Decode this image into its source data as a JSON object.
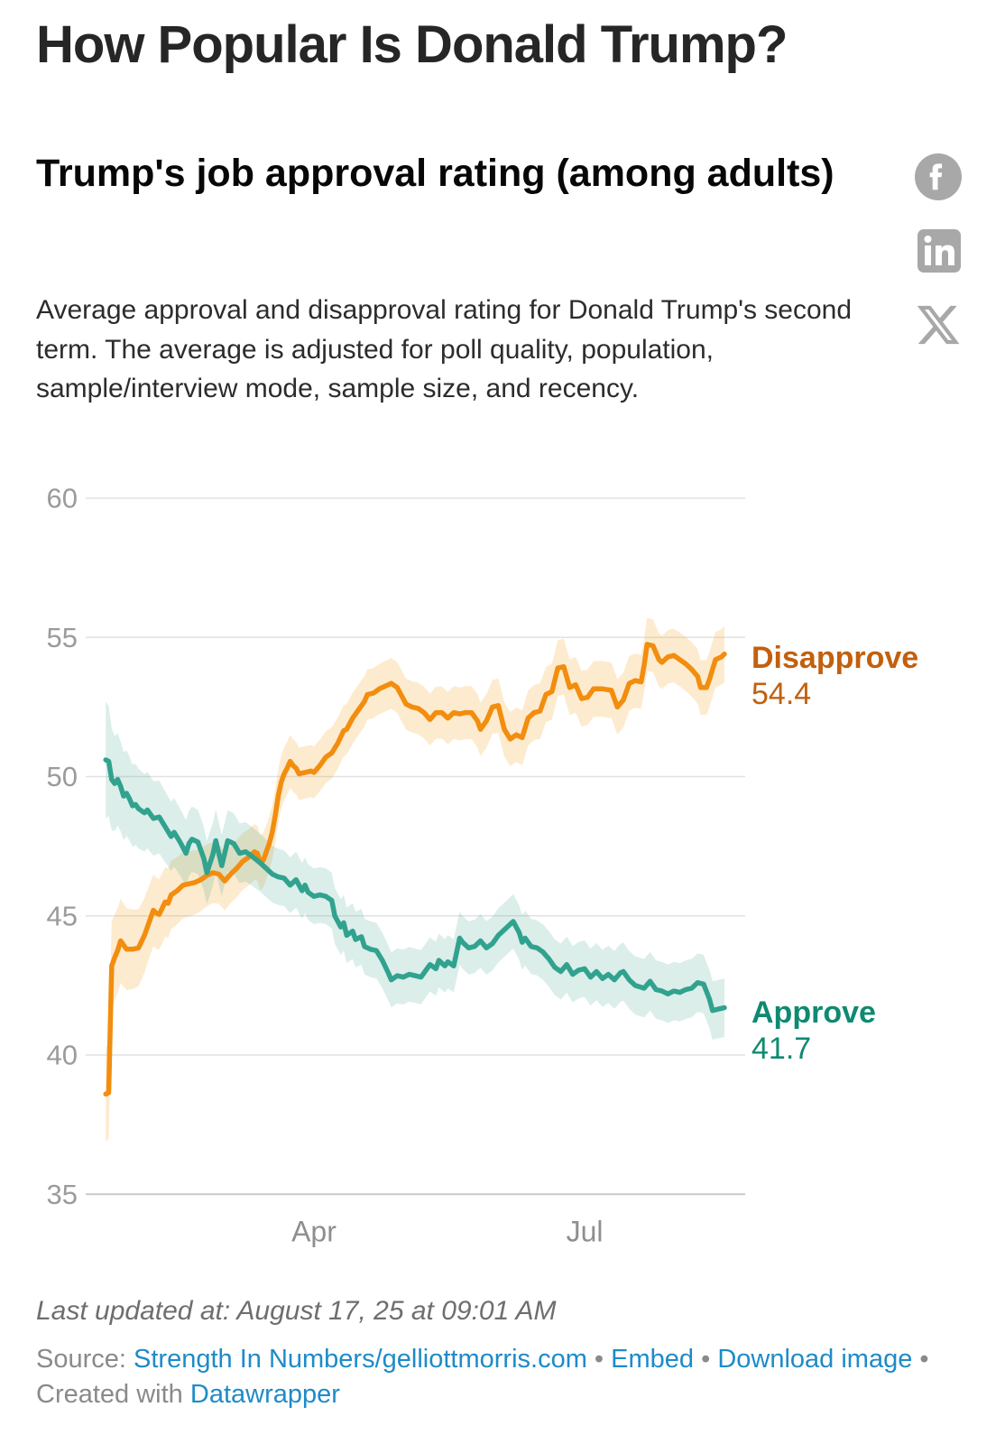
{
  "page": {
    "title": "How Popular Is Donald Trump?"
  },
  "header": {
    "headline": "Trump's job approval rating (among adults)",
    "description": "Average approval and disapproval rating for Donald Trump's second term. The average is adjusted for poll quality, population, sample/interview mode, sample size, and recency.",
    "share_icons": [
      "facebook",
      "linkedin",
      "x"
    ],
    "icon_color": "#a8a8a8"
  },
  "chart_data": {
    "type": "line",
    "title": "Trump's job approval rating (among adults)",
    "x_domain": [
      "2025-01-21",
      "2025-08-17"
    ],
    "x_unit": "days since 2025-01-21",
    "x_ticks": [
      {
        "day": 70,
        "label": "Apr"
      },
      {
        "day": 161,
        "label": "Jul"
      }
    ],
    "y_ticks": [
      60,
      55,
      50,
      45,
      40,
      35
    ],
    "ylim": [
      35,
      60
    ],
    "grid": "horizontal-only",
    "legend_position": "right-end-labels",
    "axis_label_color": "#9b9b9b",
    "grid_color": "#e2e2e2",
    "baseline_color": "#c9c9c9",
    "series": [
      {
        "name": "Disapprove",
        "end_value": 54.4,
        "end_value_label": "54.4",
        "color": "#f28d0e",
        "label_color": "#c2600e",
        "band_color": "#f5a623",
        "band_opacity": 0.22,
        "band_margin": [
          [
            0,
            1.7
          ],
          [
            3,
            1.55
          ],
          [
            8,
            1.45
          ],
          [
            15,
            1.3
          ],
          [
            25,
            1.2
          ],
          [
            40,
            1.05
          ],
          [
            60,
            0.95
          ],
          [
            90,
            0.9
          ],
          [
            120,
            0.95
          ],
          [
            150,
            1.0
          ],
          [
            170,
            1.0
          ],
          [
            185,
            0.95
          ],
          [
            208,
            1.0
          ]
        ],
        "points": [
          [
            0,
            38.6
          ],
          [
            1,
            38.65
          ],
          [
            2,
            43.2
          ],
          [
            3,
            43.5
          ],
          [
            4,
            43.75
          ],
          [
            5,
            44.1
          ],
          [
            6,
            43.95
          ],
          [
            7,
            43.8
          ],
          [
            9,
            43.8
          ],
          [
            11,
            43.85
          ],
          [
            13,
            44.3
          ],
          [
            15,
            44.9
          ],
          [
            16,
            45.2
          ],
          [
            17,
            45.1
          ],
          [
            18,
            45.05
          ],
          [
            20,
            45.5
          ],
          [
            21,
            45.45
          ],
          [
            22,
            45.75
          ],
          [
            24,
            45.9
          ],
          [
            26,
            46.1
          ],
          [
            28,
            46.15
          ],
          [
            30,
            46.2
          ],
          [
            32,
            46.3
          ],
          [
            34,
            46.45
          ],
          [
            36,
            46.55
          ],
          [
            38,
            46.5
          ],
          [
            40,
            46.25
          ],
          [
            42,
            46.5
          ],
          [
            44,
            46.7
          ],
          [
            46,
            46.95
          ],
          [
            48,
            47.1
          ],
          [
            50,
            47.3
          ],
          [
            51,
            47.25
          ],
          [
            52,
            46.9
          ],
          [
            53,
            47.0
          ],
          [
            54,
            47.3
          ],
          [
            55,
            47.6
          ],
          [
            56,
            48.0
          ],
          [
            57,
            48.6
          ],
          [
            58,
            49.3
          ],
          [
            59,
            49.8
          ],
          [
            60,
            50.1
          ],
          [
            61,
            50.3
          ],
          [
            62,
            50.55
          ],
          [
            63,
            50.4
          ],
          [
            64,
            50.3
          ],
          [
            65,
            50.1
          ],
          [
            67,
            50.15
          ],
          [
            69,
            50.2
          ],
          [
            70,
            50.15
          ],
          [
            72,
            50.4
          ],
          [
            74,
            50.7
          ],
          [
            76,
            50.85
          ],
          [
            78,
            51.2
          ],
          [
            80,
            51.65
          ],
          [
            81,
            51.7
          ],
          [
            83,
            52.1
          ],
          [
            85,
            52.4
          ],
          [
            87,
            52.7
          ],
          [
            88,
            52.95
          ],
          [
            90,
            53.0
          ],
          [
            92,
            53.15
          ],
          [
            94,
            53.25
          ],
          [
            96,
            53.35
          ],
          [
            98,
            53.2
          ],
          [
            99,
            53.0
          ],
          [
            101,
            52.6
          ],
          [
            103,
            52.5
          ],
          [
            105,
            52.45
          ],
          [
            107,
            52.3
          ],
          [
            109,
            52.05
          ],
          [
            111,
            52.3
          ],
          [
            113,
            52.3
          ],
          [
            115,
            52.1
          ],
          [
            117,
            52.3
          ],
          [
            119,
            52.25
          ],
          [
            121,
            52.3
          ],
          [
            123,
            52.3
          ],
          [
            125,
            52.0
          ],
          [
            126,
            51.7
          ],
          [
            128,
            52.0
          ],
          [
            130,
            52.5
          ],
          [
            132,
            52.55
          ],
          [
            134,
            51.7
          ],
          [
            136,
            51.35
          ],
          [
            138,
            51.5
          ],
          [
            140,
            51.4
          ],
          [
            142,
            52.1
          ],
          [
            144,
            52.3
          ],
          [
            146,
            52.35
          ],
          [
            148,
            52.95
          ],
          [
            150,
            53.05
          ],
          [
            152,
            53.9
          ],
          [
            154,
            53.95
          ],
          [
            156,
            53.2
          ],
          [
            158,
            53.3
          ],
          [
            160,
            52.8
          ],
          [
            162,
            52.85
          ],
          [
            164,
            53.15
          ],
          [
            167,
            53.15
          ],
          [
            170,
            53.1
          ],
          [
            172,
            52.5
          ],
          [
            174,
            52.75
          ],
          [
            176,
            53.35
          ],
          [
            178,
            53.45
          ],
          [
            180,
            53.4
          ],
          [
            181,
            54.0
          ],
          [
            182,
            54.75
          ],
          [
            184,
            54.7
          ],
          [
            186,
            54.2
          ],
          [
            187,
            54.1
          ],
          [
            189,
            54.3
          ],
          [
            191,
            54.35
          ],
          [
            193,
            54.2
          ],
          [
            195,
            54.05
          ],
          [
            197,
            53.85
          ],
          [
            199,
            53.6
          ],
          [
            200,
            53.2
          ],
          [
            202,
            53.2
          ],
          [
            203,
            53.5
          ],
          [
            205,
            54.2
          ],
          [
            207,
            54.3
          ],
          [
            208,
            54.4
          ]
        ]
      },
      {
        "name": "Approve",
        "end_value": 41.7,
        "end_value_label": "41.7",
        "color": "#31a28e",
        "label_color": "#0e8a71",
        "band_color": "#36a18b",
        "band_opacity": 0.18,
        "band_margin": [
          [
            0,
            2.1
          ],
          [
            3,
            1.7
          ],
          [
            8,
            1.5
          ],
          [
            15,
            1.35
          ],
          [
            25,
            1.2
          ],
          [
            40,
            1.1
          ],
          [
            60,
            1.0
          ],
          [
            90,
            1.0
          ],
          [
            120,
            0.95
          ],
          [
            150,
            1.0
          ],
          [
            180,
            1.05
          ],
          [
            208,
            1.05
          ]
        ],
        "points": [
          [
            0,
            50.6
          ],
          [
            1,
            50.55
          ],
          [
            2,
            49.9
          ],
          [
            3,
            49.75
          ],
          [
            4,
            49.9
          ],
          [
            5,
            49.65
          ],
          [
            6,
            49.3
          ],
          [
            7,
            49.4
          ],
          [
            8,
            49.2
          ],
          [
            9,
            48.95
          ],
          [
            10,
            49.0
          ],
          [
            11,
            48.85
          ],
          [
            13,
            48.7
          ],
          [
            14,
            48.8
          ],
          [
            16,
            48.5
          ],
          [
            18,
            48.55
          ],
          [
            20,
            48.2
          ],
          [
            22,
            47.85
          ],
          [
            23,
            48.0
          ],
          [
            25,
            47.65
          ],
          [
            27,
            47.25
          ],
          [
            28,
            47.6
          ],
          [
            29,
            47.75
          ],
          [
            31,
            47.65
          ],
          [
            33,
            47.05
          ],
          [
            34,
            46.55
          ],
          [
            36,
            47.2
          ],
          [
            37,
            47.7
          ],
          [
            39,
            46.8
          ],
          [
            41,
            47.7
          ],
          [
            43,
            47.6
          ],
          [
            45,
            47.25
          ],
          [
            47,
            47.3
          ],
          [
            49,
            47.15
          ],
          [
            52,
            46.9
          ],
          [
            54,
            46.7
          ],
          [
            56,
            46.5
          ],
          [
            58,
            46.4
          ],
          [
            60,
            46.35
          ],
          [
            62,
            46.1
          ],
          [
            64,
            46.3
          ],
          [
            66,
            45.9
          ],
          [
            67,
            46.1
          ],
          [
            68,
            45.85
          ],
          [
            70,
            45.7
          ],
          [
            72,
            45.75
          ],
          [
            74,
            45.7
          ],
          [
            76,
            45.55
          ],
          [
            77,
            45.0
          ],
          [
            79,
            44.6
          ],
          [
            80,
            44.75
          ],
          [
            81,
            44.3
          ],
          [
            83,
            44.45
          ],
          [
            84,
            44.15
          ],
          [
            86,
            44.25
          ],
          [
            87,
            43.9
          ],
          [
            89,
            43.8
          ],
          [
            91,
            43.75
          ],
          [
            93,
            43.4
          ],
          [
            95,
            42.95
          ],
          [
            96,
            42.7
          ],
          [
            98,
            42.85
          ],
          [
            100,
            42.8
          ],
          [
            102,
            42.9
          ],
          [
            104,
            42.85
          ],
          [
            106,
            42.8
          ],
          [
            108,
            43.1
          ],
          [
            109,
            43.25
          ],
          [
            111,
            43.1
          ],
          [
            112,
            43.4
          ],
          [
            114,
            43.2
          ],
          [
            115,
            43.35
          ],
          [
            117,
            43.2
          ],
          [
            119,
            44.2
          ],
          [
            120,
            44.05
          ],
          [
            122,
            43.85
          ],
          [
            124,
            43.9
          ],
          [
            126,
            44.1
          ],
          [
            128,
            43.85
          ],
          [
            130,
            44.0
          ],
          [
            132,
            44.3
          ],
          [
            134,
            44.5
          ],
          [
            136,
            44.7
          ],
          [
            137,
            44.8
          ],
          [
            139,
            44.4
          ],
          [
            140,
            44.05
          ],
          [
            141,
            44.2
          ],
          [
            143,
            43.9
          ],
          [
            145,
            43.85
          ],
          [
            147,
            43.7
          ],
          [
            149,
            43.45
          ],
          [
            151,
            43.15
          ],
          [
            153,
            43.0
          ],
          [
            155,
            43.25
          ],
          [
            157,
            42.9
          ],
          [
            159,
            43.05
          ],
          [
            161,
            43.1
          ],
          [
            163,
            42.8
          ],
          [
            165,
            43.0
          ],
          [
            167,
            42.75
          ],
          [
            169,
            42.9
          ],
          [
            171,
            42.7
          ],
          [
            173,
            42.95
          ],
          [
            174,
            43.0
          ],
          [
            176,
            42.7
          ],
          [
            178,
            42.5
          ],
          [
            181,
            42.4
          ],
          [
            183,
            42.65
          ],
          [
            185,
            42.35
          ],
          [
            187,
            42.3
          ],
          [
            189,
            42.2
          ],
          [
            191,
            42.3
          ],
          [
            193,
            42.25
          ],
          [
            195,
            42.35
          ],
          [
            197,
            42.4
          ],
          [
            199,
            42.6
          ],
          [
            201,
            42.55
          ],
          [
            203,
            42.0
          ],
          [
            204,
            41.6
          ],
          [
            206,
            41.65
          ],
          [
            208,
            41.7
          ]
        ]
      }
    ]
  },
  "footer": {
    "last_updated": "Last updated at: August 17, 25 at 09:01 AM",
    "source_label": "Source:",
    "source_link": "Strength In Numbers/gelliottmorris.com",
    "bullet": "•",
    "embed_link": "Embed",
    "download_link": "Download image",
    "created_label": "Created with",
    "datawrapper_link": "Datawrapper",
    "link_color": "#1e8bc8"
  }
}
